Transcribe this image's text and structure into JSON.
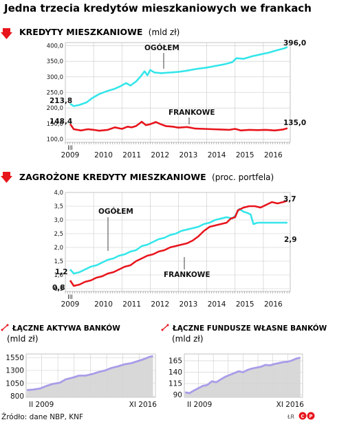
{
  "title": "Jedna trzecia kredytów mieszkaniowych we frankach",
  "source": "Źródło: dane NBP, KNF",
  "signature": "ŁR",
  "colors": {
    "ogolem": "#33e6ea",
    "frankowe": "#e8141c",
    "banks": "#a99ce8",
    "arrow": "#e8141c"
  },
  "chart_data": [
    {
      "type": "line",
      "title": "KREDYTY MIESZKANIOWE",
      "unit": "(mld zł)",
      "ylim": [
        90,
        410
      ],
      "yticks": [
        100,
        150,
        200,
        250,
        300,
        350,
        400
      ],
      "ytick_labels": [
        "100,0",
        "150,0",
        "200,0",
        "250,0",
        "300,0",
        "350,0",
        "400,0"
      ],
      "xlim": [
        2009.0,
        2016.95
      ],
      "xtick_labels": [
        "2009",
        "2010",
        "2011",
        "2012",
        "2013",
        "2014",
        "2015",
        "2016"
      ],
      "xtick_extra": "III",
      "grid": true,
      "series": [
        {
          "name": "OGÓŁEM",
          "start_label": "213,8",
          "end_label": "396,0",
          "points": [
            [
              2009.17,
              213.8
            ],
            [
              2009.3,
              206
            ],
            [
              2009.5,
              210
            ],
            [
              2009.75,
              218
            ],
            [
              2009.95,
              232
            ],
            [
              2010.2,
              245
            ],
            [
              2010.5,
              255
            ],
            [
              2010.75,
              262
            ],
            [
              2010.95,
              270
            ],
            [
              2011.15,
              280
            ],
            [
              2011.3,
              272
            ],
            [
              2011.5,
              285
            ],
            [
              2011.65,
              300
            ],
            [
              2011.8,
              318
            ],
            [
              2011.9,
              305
            ],
            [
              2012.0,
              322
            ],
            [
              2012.15,
              314
            ],
            [
              2012.4,
              312
            ],
            [
              2012.7,
              314
            ],
            [
              2013.0,
              316
            ],
            [
              2013.3,
              320
            ],
            [
              2013.6,
              325
            ],
            [
              2014.0,
              330
            ],
            [
              2014.3,
              335
            ],
            [
              2014.6,
              340
            ],
            [
              2014.9,
              347
            ],
            [
              2015.05,
              360
            ],
            [
              2015.3,
              358
            ],
            [
              2015.6,
              366
            ],
            [
              2015.9,
              372
            ],
            [
              2016.2,
              378
            ],
            [
              2016.5,
              386
            ],
            [
              2016.75,
              392
            ],
            [
              2016.85,
              396
            ]
          ]
        },
        {
          "name": "FRANKOWE",
          "start_label": "148,4",
          "end_label": "135,0",
          "points": [
            [
              2009.17,
              148.4
            ],
            [
              2009.3,
              132
            ],
            [
              2009.55,
              128
            ],
            [
              2009.8,
              132
            ],
            [
              2010.0,
              130
            ],
            [
              2010.2,
              127
            ],
            [
              2010.5,
              130
            ],
            [
              2010.75,
              138
            ],
            [
              2011.0,
              133
            ],
            [
              2011.2,
              140
            ],
            [
              2011.35,
              138
            ],
            [
              2011.5,
              142
            ],
            [
              2011.7,
              156
            ],
            [
              2011.85,
              145
            ],
            [
              2012.0,
              148
            ],
            [
              2012.2,
              155
            ],
            [
              2012.35,
              149
            ],
            [
              2012.55,
              142
            ],
            [
              2012.8,
              140
            ],
            [
              2013.0,
              137
            ],
            [
              2013.3,
              139
            ],
            [
              2013.6,
              134
            ],
            [
              2013.9,
              133
            ],
            [
              2014.2,
              132
            ],
            [
              2014.5,
              131
            ],
            [
              2014.8,
              130
            ],
            [
              2015.0,
              133
            ],
            [
              2015.2,
              128
            ],
            [
              2015.5,
              130
            ],
            [
              2015.8,
              129
            ],
            [
              2016.1,
              130
            ],
            [
              2016.4,
              128
            ],
            [
              2016.7,
              131
            ],
            [
              2016.85,
              135
            ]
          ]
        }
      ]
    },
    {
      "type": "line",
      "title": "ZAGROŻONE KREDYTY MIESZKANIOWE",
      "unit": "(proc. portfela)",
      "ylim": [
        0.4,
        4.0
      ],
      "yticks": [
        0.5,
        1.0,
        1.5,
        2.0,
        2.5,
        3.0,
        3.5,
        4.0
      ],
      "ytick_labels": [
        "0,5",
        "1,0",
        "1,5",
        "2,0",
        "2,5",
        "3,0",
        "3,5",
        "4,0"
      ],
      "xlim": [
        2009.0,
        2016.95
      ],
      "xtick_labels": [
        "2009",
        "2010",
        "2011",
        "2012",
        "2013",
        "2014",
        "2015",
        "2016"
      ],
      "xtick_extra": "III",
      "grid": true,
      "series": [
        {
          "name": "OGÓŁEM",
          "start_label": "1,2",
          "end_label": "2,9",
          "points": [
            [
              2009.17,
              1.2
            ],
            [
              2009.3,
              1.05
            ],
            [
              2009.5,
              1.1
            ],
            [
              2009.7,
              1.2
            ],
            [
              2009.9,
              1.3
            ],
            [
              2010.1,
              1.35
            ],
            [
              2010.3,
              1.45
            ],
            [
              2010.5,
              1.55
            ],
            [
              2010.7,
              1.6
            ],
            [
              2010.9,
              1.7
            ],
            [
              2011.1,
              1.75
            ],
            [
              2011.3,
              1.85
            ],
            [
              2011.5,
              1.9
            ],
            [
              2011.7,
              2.05
            ],
            [
              2011.9,
              2.1
            ],
            [
              2012.1,
              2.2
            ],
            [
              2012.3,
              2.3
            ],
            [
              2012.5,
              2.35
            ],
            [
              2012.7,
              2.45
            ],
            [
              2012.9,
              2.5
            ],
            [
              2013.1,
              2.6
            ],
            [
              2013.3,
              2.65
            ],
            [
              2013.5,
              2.7
            ],
            [
              2013.7,
              2.75
            ],
            [
              2013.9,
              2.85
            ],
            [
              2014.1,
              2.9
            ],
            [
              2014.3,
              3.0
            ],
            [
              2014.5,
              3.05
            ],
            [
              2014.7,
              3.1
            ],
            [
              2014.9,
              3.05
            ],
            [
              2015.0,
              3.15
            ],
            [
              2015.15,
              3.4
            ],
            [
              2015.3,
              3.3
            ],
            [
              2015.45,
              3.25
            ],
            [
              2015.55,
              3.2
            ],
            [
              2015.65,
              2.85
            ],
            [
              2015.8,
              2.9
            ],
            [
              2016.2,
              2.9
            ],
            [
              2016.6,
              2.9
            ],
            [
              2016.85,
              2.9
            ]
          ]
        },
        {
          "name": "FRANKOWE",
          "start_label": "0,8",
          "end_label": "3,7",
          "points": [
            [
              2009.17,
              0.8
            ],
            [
              2009.3,
              0.6
            ],
            [
              2009.5,
              0.65
            ],
            [
              2009.7,
              0.75
            ],
            [
              2009.9,
              0.8
            ],
            [
              2010.1,
              0.9
            ],
            [
              2010.3,
              0.95
            ],
            [
              2010.5,
              1.05
            ],
            [
              2010.7,
              1.1
            ],
            [
              2010.9,
              1.2
            ],
            [
              2011.1,
              1.3
            ],
            [
              2011.3,
              1.35
            ],
            [
              2011.5,
              1.5
            ],
            [
              2011.7,
              1.6
            ],
            [
              2011.9,
              1.7
            ],
            [
              2012.1,
              1.75
            ],
            [
              2012.3,
              1.85
            ],
            [
              2012.5,
              1.9
            ],
            [
              2012.7,
              2.0
            ],
            [
              2012.9,
              2.05
            ],
            [
              2013.1,
              2.1
            ],
            [
              2013.3,
              2.15
            ],
            [
              2013.5,
              2.25
            ],
            [
              2013.7,
              2.4
            ],
            [
              2013.9,
              2.6
            ],
            [
              2014.1,
              2.75
            ],
            [
              2014.3,
              2.8
            ],
            [
              2014.5,
              2.85
            ],
            [
              2014.7,
              2.9
            ],
            [
              2014.85,
              3.05
            ],
            [
              2015.0,
              3.1
            ],
            [
              2015.1,
              3.35
            ],
            [
              2015.3,
              3.45
            ],
            [
              2015.5,
              3.5
            ],
            [
              2015.7,
              3.5
            ],
            [
              2015.9,
              3.45
            ],
            [
              2016.1,
              3.55
            ],
            [
              2016.3,
              3.65
            ],
            [
              2016.5,
              3.6
            ],
            [
              2016.7,
              3.65
            ],
            [
              2016.85,
              3.7
            ]
          ]
        }
      ]
    },
    {
      "type": "area",
      "title": "ŁĄCZNE AKTYWA BANKÓW",
      "unit": "(mld zł)",
      "ylim": [
        780,
        1620
      ],
      "yticks": [
        800,
        1050,
        1300,
        1550
      ],
      "ytick_labels": [
        "800",
        "1050",
        "1300",
        "1550"
      ],
      "xlim": [
        2009.05,
        2017.0
      ],
      "xtick_labels": [
        "II 2009",
        "XI 2016"
      ],
      "grid": true,
      "series": [
        {
          "points": [
            [
              2009.1,
              920
            ],
            [
              2009.5,
              930
            ],
            [
              2009.9,
              950
            ],
            [
              2010.3,
              1000
            ],
            [
              2010.7,
              1040
            ],
            [
              2011.1,
              1060
            ],
            [
              2011.5,
              1130
            ],
            [
              2011.9,
              1160
            ],
            [
              2012.3,
              1200
            ],
            [
              2012.7,
              1200
            ],
            [
              2013.1,
              1230
            ],
            [
              2013.5,
              1270
            ],
            [
              2013.9,
              1300
            ],
            [
              2014.3,
              1350
            ],
            [
              2014.7,
              1380
            ],
            [
              2015.1,
              1420
            ],
            [
              2015.5,
              1440
            ],
            [
              2015.9,
              1480
            ],
            [
              2016.3,
              1520
            ],
            [
              2016.6,
              1560
            ],
            [
              2016.85,
              1580
            ]
          ]
        }
      ]
    },
    {
      "type": "area",
      "title": "ŁĄCZNE FUNDUSZE WŁASNE BANKÓW",
      "unit": "(mld zł)",
      "ylim": [
        85,
        180
      ],
      "yticks": [
        90,
        115,
        140,
        165
      ],
      "ytick_labels": [
        "90",
        "115",
        "140",
        "165"
      ],
      "xlim": [
        2009.05,
        2017.0
      ],
      "xtick_labels": [
        "II 2009",
        "XI 2016"
      ],
      "grid": true,
      "series": [
        {
          "points": [
            [
              2009.1,
              96
            ],
            [
              2009.4,
              94
            ],
            [
              2009.7,
              100
            ],
            [
              2010.0,
              105
            ],
            [
              2010.3,
              110
            ],
            [
              2010.6,
              112
            ],
            [
              2010.9,
              120
            ],
            [
              2011.2,
              118
            ],
            [
              2011.5,
              124
            ],
            [
              2011.8,
              130
            ],
            [
              2012.1,
              134
            ],
            [
              2012.4,
              138
            ],
            [
              2012.7,
              142
            ],
            [
              2013.0,
              140
            ],
            [
              2013.3,
              145
            ],
            [
              2013.6,
              148
            ],
            [
              2013.9,
              150
            ],
            [
              2014.2,
              152
            ],
            [
              2014.5,
              156
            ],
            [
              2014.8,
              155
            ],
            [
              2015.1,
              158
            ],
            [
              2015.4,
              160
            ],
            [
              2015.7,
              162
            ],
            [
              2016.0,
              163
            ],
            [
              2016.3,
              166
            ],
            [
              2016.6,
              170
            ],
            [
              2016.85,
              172
            ]
          ]
        }
      ]
    }
  ]
}
